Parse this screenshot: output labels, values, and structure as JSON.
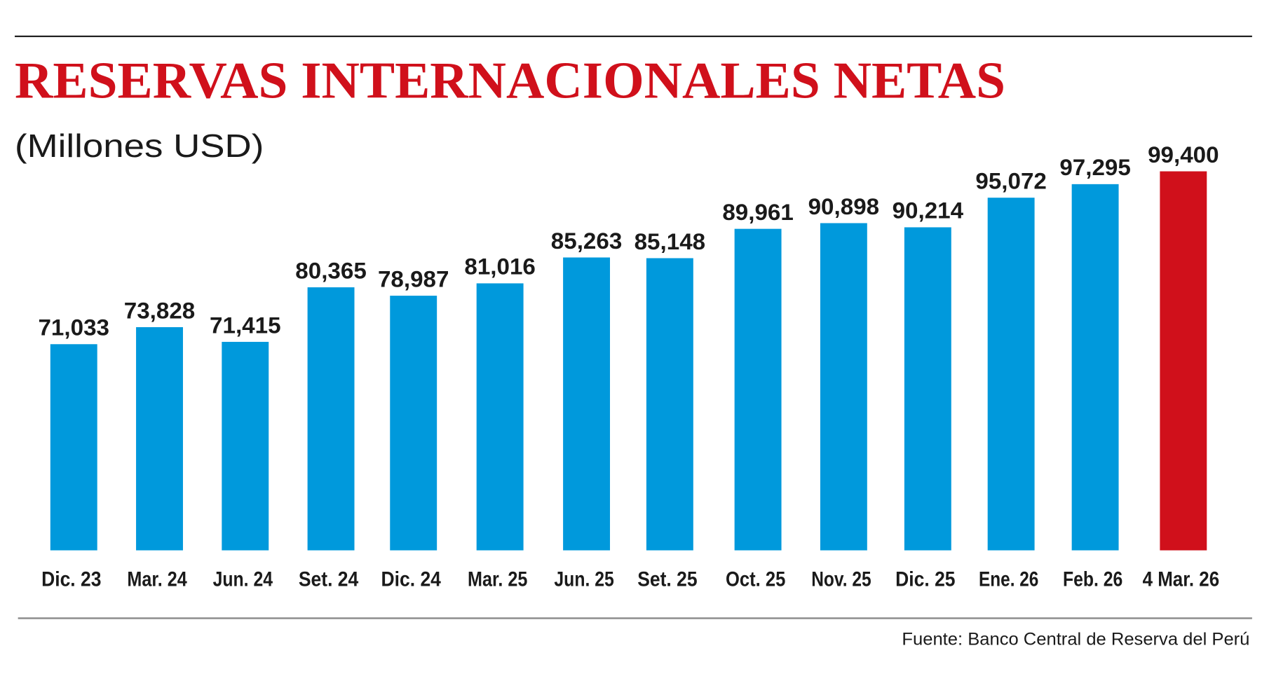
{
  "chart_data": {
    "type": "bar",
    "title": "RESERVAS INTERNACIONALES NETAS",
    "subtitle": "(Millones USD)",
    "xlabel": "",
    "ylabel": "Millones USD",
    "ylim": [
      37200,
      99400
    ],
    "grid": false,
    "categories": [
      "Dic. 23",
      "Mar. 24",
      "Jun. 24",
      "Set. 24",
      "Dic. 24",
      "Mar. 25",
      "Jun. 25",
      "Set. 25",
      "Oct. 25",
      "Nov. 25",
      "Dic. 25",
      "Ene. 26",
      "Feb. 26",
      "4 Mar. 26"
    ],
    "values": [
      71033,
      73828,
      71415,
      80365,
      78987,
      81016,
      85263,
      85148,
      89961,
      90898,
      90214,
      95072,
      97295,
      99400
    ],
    "value_labels": [
      "71,033",
      "73,828",
      "71,415",
      "80,365",
      "78,987",
      "81,016",
      "85,263",
      "85,148",
      "89,961",
      "90,898",
      "90,214",
      "95,072",
      "97,295",
      "99,400"
    ],
    "source": "Fuente: Banco Central de Reserva del Perú",
    "colors": {
      "bar": "#0099dc",
      "highlight": "#d0101b",
      "title": "#d0101b"
    },
    "highlight_index": 13
  }
}
